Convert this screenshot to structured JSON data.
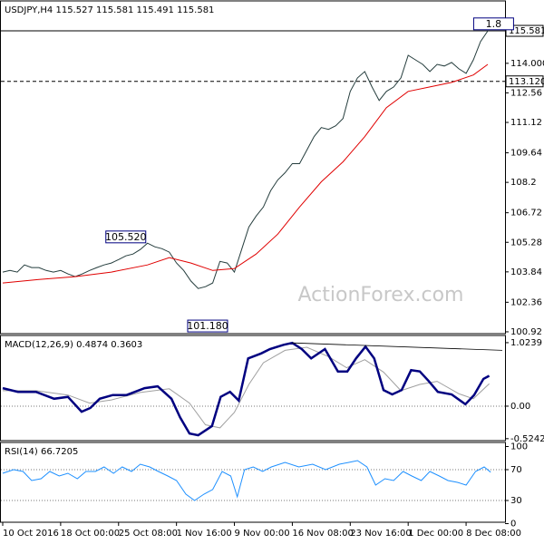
{
  "watermark": "ActionForex.com",
  "chart_data": [
    {
      "type": "line",
      "title": "USDJPY,H4  115.527 115.581 115.491 115.581",
      "xlim": [
        0,
        69
      ],
      "ylim": [
        100.83,
        117.04
      ],
      "yticks": [
        {
          "value": 114,
          "label": "114.000"
        },
        112.56,
        111.12,
        109.64,
        108.2,
        106.72,
        105.28,
        103.84,
        102.36,
        100.92
      ],
      "hlines": [
        {
          "value": 115.581,
          "label": "115.581",
          "style": "solid"
        },
        {
          "value": 113.12,
          "label": "113.120",
          "style": "dashed"
        }
      ],
      "annotations": [
        {
          "label": "105.520",
          "x": 17,
          "value": 105.52
        },
        {
          "label": "101.180",
          "x": 28.3,
          "value": 101.18
        },
        {
          "label": "1.8",
          "x": 67.8,
          "value": 115.9
        }
      ],
      "series": [
        {
          "color": "#253d3d",
          "style": "normal",
          "x": [
            0,
            1,
            2,
            3,
            4,
            5,
            6,
            7,
            8,
            9,
            10,
            11,
            12,
            13,
            14,
            15,
            16,
            17,
            18,
            19,
            20,
            21,
            22,
            23,
            24,
            25,
            26,
            27,
            28,
            29,
            30,
            31,
            32,
            33,
            34,
            35,
            36,
            37,
            38,
            39,
            40,
            41,
            42,
            43,
            44,
            45,
            46,
            47,
            48,
            49,
            50,
            51,
            52,
            53,
            54,
            55,
            56,
            57,
            58,
            59,
            60,
            61,
            62,
            63,
            64,
            65,
            66,
            67
          ],
          "values": [
            103.83,
            103.91,
            103.83,
            104.18,
            104.05,
            104.05,
            103.91,
            103.83,
            103.91,
            103.74,
            103.61,
            103.74,
            103.91,
            104.05,
            104.18,
            104.27,
            104.44,
            104.62,
            104.71,
            104.93,
            105.24,
            105.06,
            104.97,
            104.8,
            104.27,
            103.91,
            103.39,
            103.03,
            103.12,
            103.3,
            104.35,
            104.27,
            103.83,
            104.93,
            106.03,
            106.56,
            107,
            107.79,
            108.32,
            108.67,
            109.11,
            109.11,
            109.77,
            110.43,
            110.87,
            110.78,
            110.96,
            111.31,
            112.63,
            113.29,
            113.6,
            112.85,
            112.19,
            112.63,
            112.85,
            113.29,
            114.39,
            114.17,
            113.95,
            113.6,
            113.95,
            113.87,
            114.04,
            113.73,
            113.51,
            114.17,
            115.06,
            115.58
          ]
        },
        {
          "color": "#e00000",
          "style": "normal",
          "x": [
            0,
            5,
            10,
            15,
            20,
            23,
            26,
            29,
            32,
            35,
            38,
            41,
            44,
            47,
            50,
            53,
            56,
            59,
            62,
            65,
            67
          ],
          "values": [
            103.3,
            103.47,
            103.61,
            103.83,
            104.18,
            104.53,
            104.27,
            103.91,
            104,
            104.71,
            105.68,
            107,
            108.23,
            109.2,
            110.43,
            111.84,
            112.63,
            112.85,
            113.07,
            113.43,
            113.95
          ]
        }
      ]
    },
    {
      "type": "line",
      "title": "MACD(12,26,9) 0.4874 0.3603",
      "xlim": [
        0,
        69
      ],
      "ylim": [
        -0.556,
        1.14
      ],
      "yticks": [
        1.0239,
        {
          "value": 0,
          "label": "0.00"
        },
        -0.5242
      ],
      "hlines": [
        {
          "value": 0,
          "style": "dotted"
        }
      ],
      "series": [
        {
          "color": "#a0a0a0",
          "style": "normal",
          "x": [
            0,
            4.6,
            9,
            12,
            15,
            19,
            23,
            25.8,
            28,
            30,
            32,
            34,
            36,
            39,
            42,
            45,
            47.5,
            50,
            52.6,
            55,
            57.6,
            60,
            63,
            65,
            67.2
          ],
          "values": [
            0.25,
            0.25,
            0.18,
            0.05,
            0.1,
            0.22,
            0.28,
            0.05,
            -0.3,
            -0.35,
            -0.1,
            0.35,
            0.7,
            0.9,
            0.95,
            0.8,
            0.62,
            0.75,
            0.55,
            0.25,
            0.35,
            0.4,
            0.2,
            0.12,
            0.36
          ]
        },
        {
          "color": "#000080",
          "style": "thick",
          "x": [
            0,
            2.1,
            4.6,
            7.1,
            9,
            10.9,
            12.1,
            13.4,
            15.2,
            17.1,
            19.6,
            21.4,
            23.3,
            24.5,
            25.8,
            27,
            28.9,
            30.1,
            31.4,
            32.6,
            33.9,
            35.7,
            36.9,
            38.8,
            40,
            41.3,
            42.6,
            44.5,
            46.3,
            47.6,
            48.8,
            50.1,
            51.3,
            52.6,
            53.8,
            55.1,
            56.4,
            57.6,
            58.8,
            60.1,
            62,
            63.9,
            65.1,
            66.4,
            67.2
          ],
          "values": [
            0.29,
            0.23,
            0.23,
            0.12,
            0.15,
            -0.09,
            -0.03,
            0.12,
            0.18,
            0.18,
            0.29,
            0.32,
            0.12,
            -0.18,
            -0.44,
            -0.47,
            -0.32,
            0.15,
            0.23,
            0.09,
            0.77,
            0.85,
            0.92,
            0.99,
            1.02,
            0.92,
            0.77,
            0.92,
            0.56,
            0.56,
            0.77,
            0.96,
            0.77,
            0.26,
            0.19,
            0.26,
            0.58,
            0.56,
            0.41,
            0.23,
            0.19,
            0.03,
            0.18,
            0.44,
            0.49
          ]
        },
        {
          "color": "#000000",
          "style": "thin",
          "x": [
            40,
            69
          ],
          "values": [
            1.02,
            0.9
          ]
        }
      ]
    },
    {
      "type": "line",
      "title": "RSI(14) 66.7205",
      "xlim": [
        0,
        69
      ],
      "ylim": [
        1.8,
        105.3
      ],
      "yticks": [
        100,
        70,
        30,
        0
      ],
      "hlines": [
        {
          "value": 70,
          "style": "dotted"
        },
        {
          "value": 30,
          "style": "dotted"
        }
      ],
      "xticks": [
        {
          "value": 0,
          "label": "10 Oct 2016"
        },
        {
          "value": 8,
          "label": "18 Oct 00:00"
        },
        {
          "value": 16,
          "label": "25 Oct 08:00"
        },
        {
          "value": 24,
          "label": "1 Nov 16:00"
        },
        {
          "value": 32,
          "label": "9 Nov 00:00"
        },
        {
          "value": 40,
          "label": "16 Nov 08:00"
        },
        {
          "value": 48,
          "label": "23 Nov 16:00"
        },
        {
          "value": 56,
          "label": "1 Dec 00:00"
        },
        {
          "value": 64,
          "label": "8 Dec 08:00"
        }
      ],
      "series": [
        {
          "color": "#1e90ff",
          "style": "normal",
          "x": [
            0,
            1.5,
            2.8,
            4,
            5.3,
            6.5,
            7.8,
            9,
            10.3,
            11.5,
            12.8,
            14,
            15.3,
            16.5,
            17.8,
            19,
            20.3,
            21.5,
            22.8,
            24,
            25.3,
            26.5,
            27.8,
            29,
            30.3,
            31.5,
            32.4,
            33.4,
            34.6,
            35.9,
            37.1,
            39,
            40.9,
            42.8,
            44.6,
            46.5,
            47.8,
            49,
            50.3,
            51.5,
            52.8,
            54,
            55.3,
            56.5,
            57.8,
            59,
            60.3,
            61.5,
            62.8,
            64,
            65.3,
            66.5,
            67.4
          ],
          "values": [
            65.3,
            70,
            67.7,
            55.9,
            58.3,
            67.7,
            61.8,
            65.3,
            58.3,
            67.7,
            67.7,
            73.6,
            65.3,
            73.6,
            67.7,
            77.1,
            73.6,
            67.7,
            61.8,
            55.9,
            38.3,
            30,
            38.3,
            44.2,
            67.7,
            61.8,
            34.7,
            70,
            73.6,
            67.7,
            73.6,
            79.4,
            73.6,
            77.1,
            70,
            77.1,
            79.4,
            81.8,
            73.6,
            50,
            58.3,
            55.9,
            67.7,
            61.8,
            55.9,
            67.7,
            61.8,
            55.9,
            53.6,
            50,
            67.7,
            73.6,
            66.72
          ]
        }
      ]
    }
  ]
}
